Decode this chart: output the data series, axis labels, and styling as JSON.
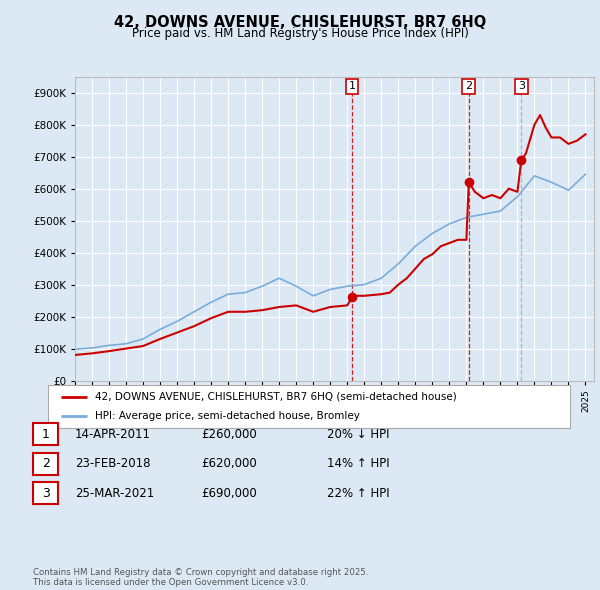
{
  "title": "42, DOWNS AVENUE, CHISLEHURST, BR7 6HQ",
  "subtitle": "Price paid vs. HM Land Registry's House Price Index (HPI)",
  "background_color": "#dce9f5",
  "plot_bg_color": "#dce9f5",
  "red_color": "#cc0000",
  "blue_color": "#7aacda",
  "sale_vline_color_red": "#cc0000",
  "sale_vline_color_grey": "#aaaaaa",
  "ylim": [
    0,
    950000
  ],
  "yticks": [
    0,
    100000,
    200000,
    300000,
    400000,
    500000,
    600000,
    700000,
    800000,
    900000
  ],
  "ytick_labels": [
    "£0",
    "£100K",
    "£200K",
    "£300K",
    "£400K",
    "£500K",
    "£600K",
    "£700K",
    "£800K",
    "£900K"
  ],
  "xlim": [
    1995,
    2025.5
  ],
  "sales": [
    {
      "date_num": 2011.28,
      "price": 260000,
      "label": "1",
      "vline_color": "#cc0000"
    },
    {
      "date_num": 2018.14,
      "price": 620000,
      "label": "2",
      "vline_color": "#cc0000"
    },
    {
      "date_num": 2021.23,
      "price": 690000,
      "label": "3",
      "vline_color": "#aaaaaa"
    }
  ],
  "sale_table": [
    {
      "num": "1",
      "date": "14-APR-2011",
      "price": "£260,000",
      "diff": "20% ↓ HPI"
    },
    {
      "num": "2",
      "date": "23-FEB-2018",
      "price": "£620,000",
      "diff": "14% ↑ HPI"
    },
    {
      "num": "3",
      "date": "25-MAR-2021",
      "price": "£690,000",
      "diff": "22% ↑ HPI"
    }
  ],
  "legend_line1": "42, DOWNS AVENUE, CHISLEHURST, BR7 6HQ (semi-detached house)",
  "legend_line2": "HPI: Average price, semi-detached house, Bromley",
  "footer": "Contains HM Land Registry data © Crown copyright and database right 2025.\nThis data is licensed under the Open Government Licence v3.0.",
  "hpi_data_years": [
    1995,
    1996,
    1997,
    1998,
    1999,
    2000,
    2001,
    2002,
    2003,
    2004,
    2005,
    2006,
    2007,
    2008,
    2009,
    2010,
    2011,
    2012,
    2013,
    2014,
    2015,
    2016,
    2017,
    2018,
    2019,
    2020,
    2021,
    2022,
    2023,
    2024,
    2025
  ],
  "hpi_data_vals": [
    98000,
    102000,
    110000,
    115000,
    130000,
    160000,
    185000,
    215000,
    245000,
    270000,
    275000,
    295000,
    320000,
    295000,
    265000,
    285000,
    295000,
    300000,
    320000,
    365000,
    420000,
    460000,
    490000,
    510000,
    520000,
    530000,
    575000,
    640000,
    620000,
    595000,
    645000
  ],
  "price_data_years": [
    1995.0,
    1996.0,
    1997.0,
    1998.0,
    1999.0,
    2000.0,
    2001.0,
    2002.0,
    2003.0,
    2004.0,
    2005.0,
    2006.0,
    2007.0,
    2008.0,
    2009.0,
    2010.0,
    2011.0,
    2011.28,
    2011.5,
    2012.0,
    2013.0,
    2013.5,
    2014.0,
    2014.5,
    2015.0,
    2015.5,
    2016.0,
    2016.5,
    2017.0,
    2017.5,
    2018.0,
    2018.14,
    2018.5,
    2019.0,
    2019.5,
    2020.0,
    2020.5,
    2021.0,
    2021.23,
    2021.5,
    2022.0,
    2022.33,
    2022.67,
    2023.0,
    2023.5,
    2024.0,
    2024.5,
    2025.0
  ],
  "price_data_vals": [
    80000,
    85000,
    92000,
    100000,
    108000,
    130000,
    150000,
    170000,
    195000,
    215000,
    215000,
    220000,
    230000,
    235000,
    215000,
    230000,
    235000,
    260000,
    265000,
    265000,
    270000,
    275000,
    300000,
    320000,
    350000,
    380000,
    395000,
    420000,
    430000,
    440000,
    440000,
    620000,
    590000,
    570000,
    580000,
    570000,
    600000,
    590000,
    690000,
    710000,
    800000,
    830000,
    790000,
    760000,
    760000,
    740000,
    750000,
    770000
  ]
}
